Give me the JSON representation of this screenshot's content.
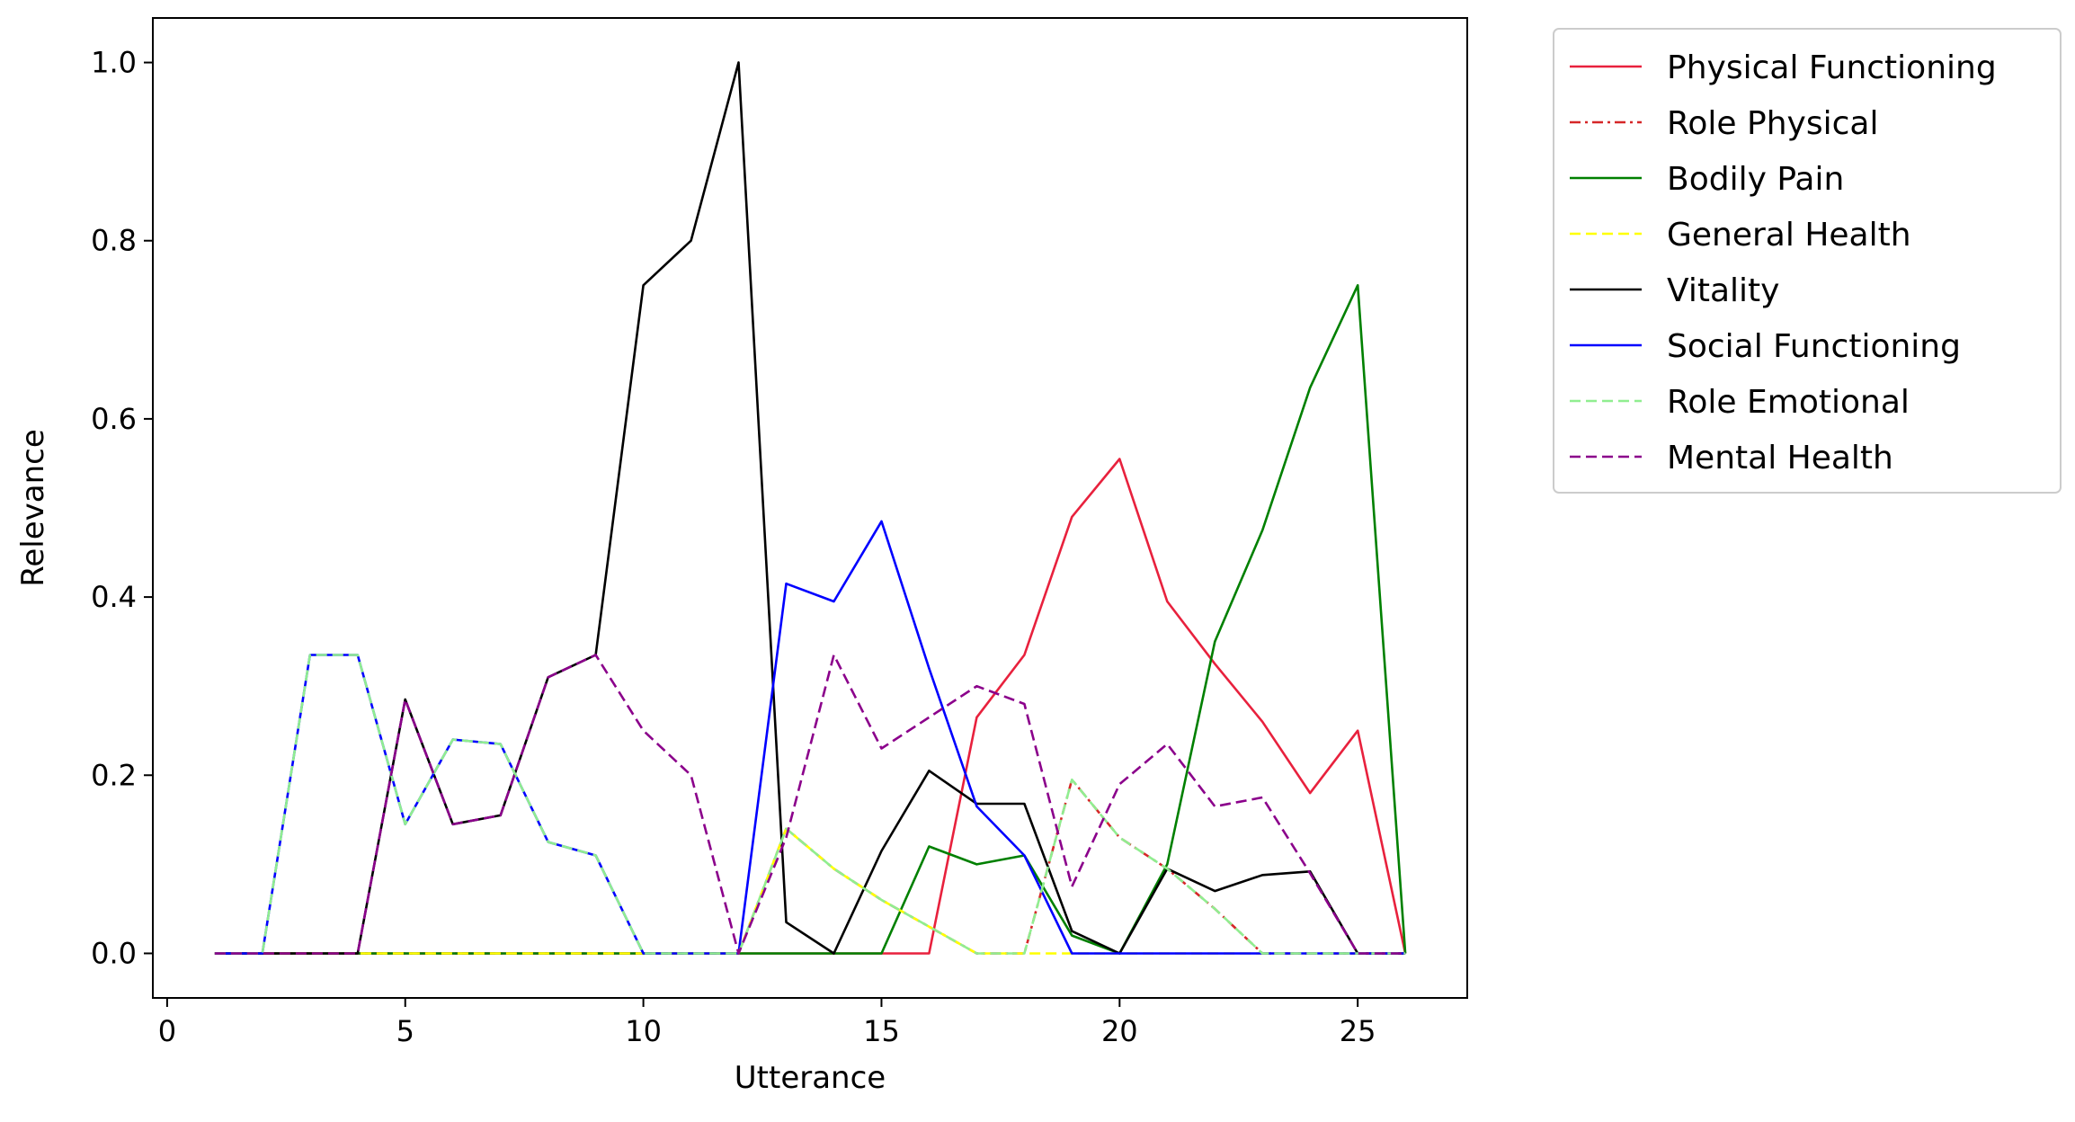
{
  "chart_data": {
    "type": "line",
    "title": "",
    "xlabel": "Utterance",
    "ylabel": "Relevance",
    "xlim": [
      -0.3,
      27.3
    ],
    "ylim": [
      -0.05,
      1.05
    ],
    "xticks": [
      0,
      5,
      10,
      15,
      20,
      25
    ],
    "yticks": [
      0.0,
      0.2,
      0.4,
      0.6,
      0.8,
      1.0
    ],
    "xtick_labels": [
      "0",
      "5",
      "10",
      "15",
      "20",
      "25"
    ],
    "ytick_labels": [
      "0.0",
      "0.2",
      "0.4",
      "0.6",
      "0.8",
      "1.0"
    ],
    "grid": false,
    "legend_position": "outside-right-top",
    "x": [
      1,
      2,
      3,
      4,
      5,
      6,
      7,
      8,
      9,
      10,
      11,
      12,
      13,
      14,
      15,
      16,
      17,
      18,
      19,
      20,
      21,
      22,
      23,
      24,
      25,
      26
    ],
    "series": [
      {
        "name": "Physical Functioning",
        "color": "#e8213d",
        "dash": "solid",
        "values": [
          0,
          0,
          0,
          0,
          0,
          0,
          0,
          0,
          0,
          0,
          0,
          0,
          0,
          0,
          0,
          0,
          0.265,
          0.335,
          0.49,
          0.555,
          0.395,
          0.325,
          0.26,
          0.18,
          0.25,
          0
        ]
      },
      {
        "name": "Role Physical",
        "color": "#d62728",
        "dash": "dashdot",
        "values": [
          0,
          0,
          0,
          0,
          0,
          0,
          0,
          0,
          0,
          0,
          0,
          0,
          0.14,
          0.095,
          0.06,
          0.03,
          0,
          0,
          0.195,
          0.13,
          0.095,
          0.05,
          0,
          0,
          0,
          0
        ]
      },
      {
        "name": "Bodily Pain",
        "color": "#008000",
        "dash": "solid",
        "values": [
          0,
          0,
          0,
          0,
          0,
          0,
          0,
          0,
          0,
          0,
          0,
          0,
          0,
          0,
          0,
          0.12,
          0.1,
          0.11,
          0.02,
          0,
          0.1,
          0.35,
          0.475,
          0.635,
          0.75,
          0
        ]
      },
      {
        "name": "General Health",
        "color": "#ffff00",
        "dash": "dashed",
        "values": [
          0,
          0,
          0,
          0,
          0,
          0,
          0,
          0,
          0,
          0,
          0,
          0,
          0.14,
          0.095,
          0.06,
          0.03,
          0,
          0,
          0,
          0,
          0,
          0,
          0,
          0,
          0,
          0
        ]
      },
      {
        "name": "Vitality",
        "color": "#000000",
        "dash": "solid",
        "values": [
          0,
          0,
          0,
          0,
          0.285,
          0.145,
          0.155,
          0.31,
          0.335,
          0.75,
          0.8,
          1.0,
          0.035,
          0,
          0.115,
          0.205,
          0.168,
          0.168,
          0.025,
          0,
          0.095,
          0.07,
          0.088,
          0.092,
          0,
          0
        ]
      },
      {
        "name": "Social Functioning",
        "color": "#0000ff",
        "dash": "solid",
        "values": [
          0,
          0,
          0.335,
          0.335,
          0.145,
          0.24,
          0.235,
          0.125,
          0.11,
          0,
          0,
          0,
          0.415,
          0.395,
          0.485,
          0.32,
          0.165,
          0.11,
          0,
          0,
          0,
          0,
          0,
          0,
          0,
          0
        ]
      },
      {
        "name": "Role Emotional",
        "color": "#90ee90",
        "dash": "dashed",
        "values": [
          0,
          0,
          0.335,
          0.335,
          0.145,
          0.24,
          0.235,
          0.125,
          0.11,
          0,
          0,
          0,
          0.14,
          0.095,
          0.06,
          0.03,
          0,
          0,
          0.195,
          0.13,
          0.095,
          0.05,
          0,
          0,
          0,
          0
        ]
      },
      {
        "name": "Mental Health",
        "color": "#8b008b",
        "dash": "dashed",
        "values": [
          0,
          0,
          0,
          0,
          0.285,
          0.145,
          0.155,
          0.31,
          0.335,
          0.25,
          0.2,
          0,
          0.13,
          0.335,
          0.23,
          0.265,
          0.3,
          0.28,
          0.075,
          0.19,
          0.235,
          0.165,
          0.175,
          0.09,
          0,
          0
        ]
      }
    ]
  }
}
